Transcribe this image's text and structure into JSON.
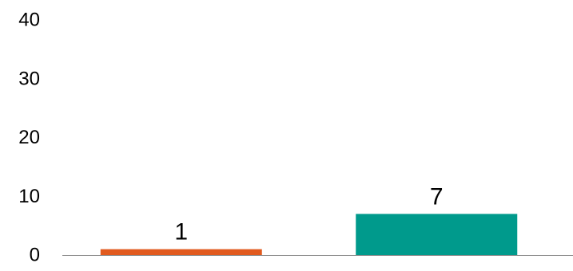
{
  "chart_data": {
    "type": "bar",
    "title": "",
    "xlabel": "",
    "ylabel": "",
    "categories": [
      "",
      ""
    ],
    "values": [
      1,
      7
    ],
    "data_labels": [
      "1",
      "7"
    ],
    "colors": [
      "#e15a1e",
      "#009a8c"
    ],
    "ylim": [
      0,
      40
    ],
    "yticks": [
      0,
      10,
      20,
      30,
      40
    ],
    "ytick_labels": [
      "0",
      "10",
      "20",
      "30",
      "40"
    ],
    "grid": false,
    "legend": "none"
  }
}
